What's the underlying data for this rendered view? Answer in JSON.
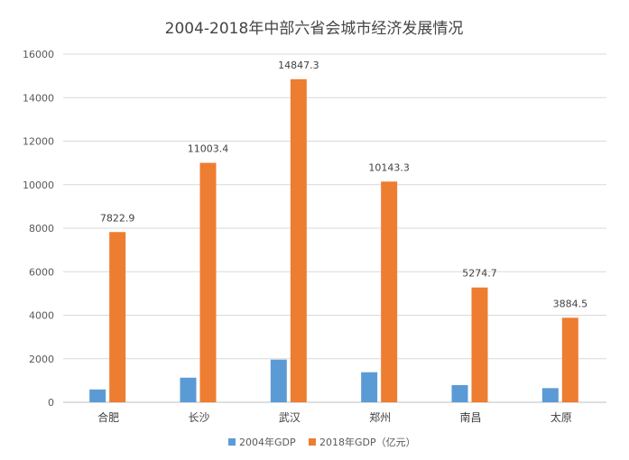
{
  "chart_data": {
    "type": "bar",
    "title": "2004-2018年中部六省会城市经济发展情况",
    "categories": [
      "合肥",
      "长沙",
      "武汉",
      "郑州",
      "南昌",
      "太原"
    ],
    "series": [
      {
        "name": "2004年GDP",
        "values": [
          590,
          1130,
          1960,
          1380,
          790,
          650
        ],
        "color": "#5B9BD5",
        "labels": []
      },
      {
        "name": "2018年GDP（亿元）",
        "values": [
          7822.9,
          11003.4,
          14847.3,
          10143.3,
          5274.7,
          3884.5
        ],
        "color": "#ED7D31",
        "labels": [
          "7822.9",
          "11003.4",
          "14847.3",
          "10143.3",
          "5274.7",
          "3884.5"
        ]
      }
    ],
    "ylim": [
      0,
      16000
    ],
    "yticks": [
      0,
      2000,
      4000,
      6000,
      8000,
      10000,
      12000,
      14000,
      16000
    ],
    "grid": true,
    "legend_position": "bottom"
  }
}
